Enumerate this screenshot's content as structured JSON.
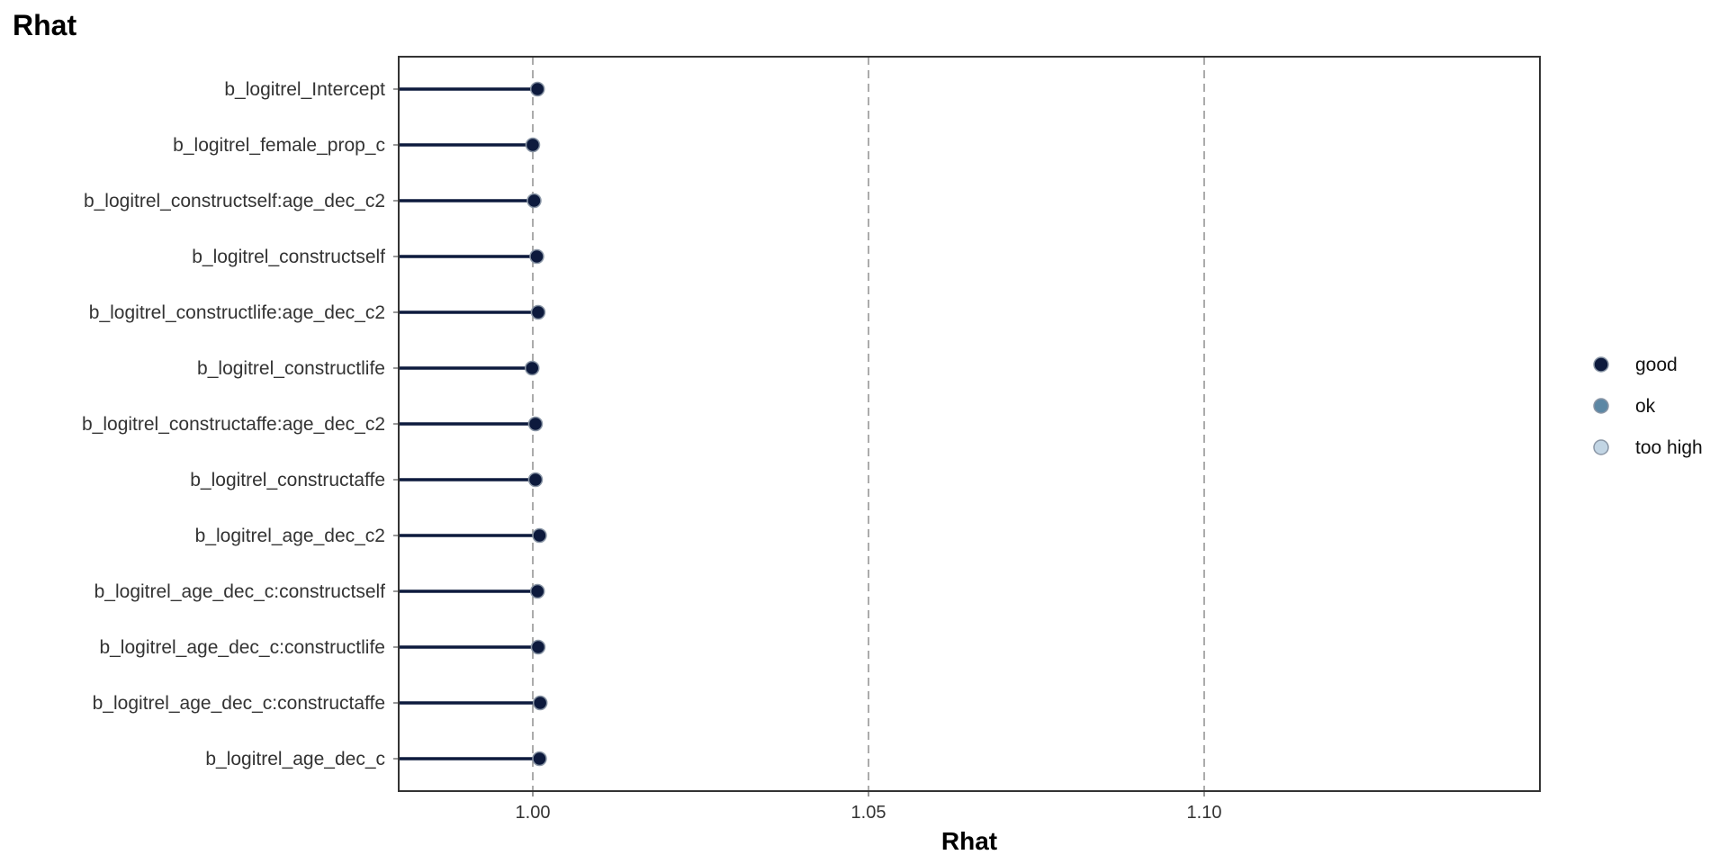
{
  "title": "Rhat",
  "chart_data": {
    "type": "scatter",
    "title": "Rhat",
    "xlabel": "Rhat",
    "ylabel": "",
    "xlim": [
      0.98,
      1.15
    ],
    "xticks": [
      "1.00",
      "1.05",
      "1.10"
    ],
    "xtick_values": [
      1.0,
      1.05,
      1.1
    ],
    "reference_lines": [
      1.0,
      1.05,
      1.1
    ],
    "grid": false,
    "legend_position": "right",
    "categories": [
      "b_logitrel_Intercept",
      "b_logitrel_female_prop_c",
      "b_logitrel_constructself:age_dec_c2",
      "b_logitrel_constructself",
      "b_logitrel_constructlife:age_dec_c2",
      "b_logitrel_constructlife",
      "b_logitrel_constructaffe:age_dec_c2",
      "b_logitrel_constructaffe",
      "b_logitrel_age_dec_c2",
      "b_logitrel_age_dec_c:constructself",
      "b_logitrel_age_dec_c:constructlife",
      "b_logitrel_age_dec_c:constructaffe",
      "b_logitrel_age_dec_c"
    ],
    "values": [
      1.0007,
      1.0,
      1.0002,
      1.0006,
      1.0008,
      0.9999,
      1.0004,
      1.0004,
      1.001,
      1.0007,
      1.0008,
      1.0011,
      1.001
    ],
    "status": [
      "good",
      "good",
      "good",
      "good",
      "good",
      "good",
      "good",
      "good",
      "good",
      "good",
      "good",
      "good",
      "good"
    ],
    "legend": [
      {
        "label": "good",
        "color": "#0d1a3d"
      },
      {
        "label": "ok",
        "color": "#5c87a4"
      },
      {
        "label": "too high",
        "color": "#c2d5e4"
      }
    ]
  }
}
